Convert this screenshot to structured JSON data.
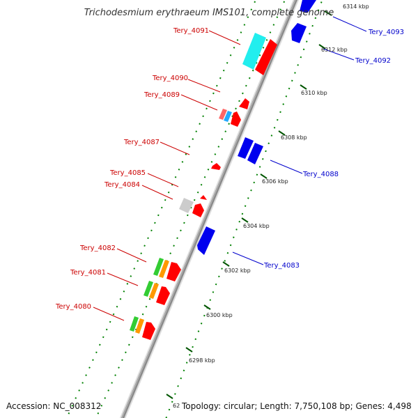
{
  "title": "Trichodesmium erythraeum IMS101, complete genome",
  "footer": {
    "accession": "Accession: NC_008312",
    "topology": "Topology: circular; Length: 7,750,108 bp; Genes: 4,498",
    "partial_tick": "62"
  },
  "colors": {
    "forward": "#ff0000",
    "reverse": "#0000ff",
    "label_forward": "#cc0000",
    "label_reverse": "#0000cc",
    "backbone": "#999999",
    "dots": "#008000"
  },
  "ticks": [
    "6314 kbp",
    "6312 kbp",
    "6310 kbp",
    "6308 kbp",
    "6306 kbp",
    "6304 kbp",
    "6302 kbp",
    "6300 kbp",
    "6298 kbp"
  ],
  "gene_labels": [
    {
      "id": "label-tery-4091",
      "text": "Tery_4091",
      "strand": "forward"
    },
    {
      "id": "label-tery-4090",
      "text": "Tery_4090",
      "strand": "forward"
    },
    {
      "id": "label-tery-4089",
      "text": "Tery_4089",
      "strand": "forward"
    },
    {
      "id": "label-tery-4087",
      "text": "Tery_4087",
      "strand": "forward"
    },
    {
      "id": "label-tery-4085",
      "text": "Tery_4085",
      "strand": "forward"
    },
    {
      "id": "label-tery-4084",
      "text": "Tery_4084",
      "strand": "forward"
    },
    {
      "id": "label-tery-4082",
      "text": "Tery_4082",
      "strand": "forward"
    },
    {
      "id": "label-tery-4081",
      "text": "Tery_4081",
      "strand": "forward"
    },
    {
      "id": "label-tery-4080",
      "text": "Tery_4080",
      "strand": "forward"
    },
    {
      "id": "label-tery-4093",
      "text": "Tery_4093",
      "strand": "reverse"
    },
    {
      "id": "label-tery-4092",
      "text": "Tery_4092",
      "strand": "reverse"
    },
    {
      "id": "label-tery-4088",
      "text": "Tery_4088",
      "strand": "reverse"
    },
    {
      "id": "label-tery-4083",
      "text": "Tery_4083",
      "strand": "reverse"
    }
  ]
}
